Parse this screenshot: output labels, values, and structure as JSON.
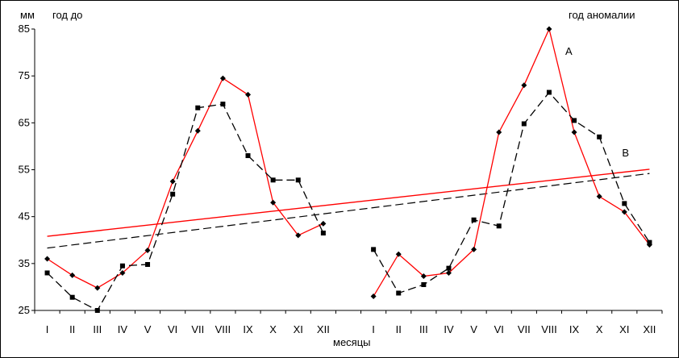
{
  "chart_data": {
    "type": "line",
    "y_unit_label": "мм",
    "left_panel_label": "год до",
    "right_panel_label": "год аномалии",
    "xlabel": "месяцы",
    "ylim": [
      25,
      85
    ],
    "yticks": [
      25,
      35,
      45,
      55,
      65,
      75,
      85
    ],
    "grid": false,
    "categories": [
      "I",
      "II",
      "III",
      "IV",
      "V",
      "VI",
      "VII",
      "VIII",
      "IX",
      "X",
      "XI",
      "XII"
    ],
    "panels": [
      {
        "name": "год до",
        "series": [
          {
            "values": [
              36,
              32.5,
              29.8,
              33,
              37.8,
              52.5,
              63.3,
              74.5,
              71,
              48,
              41,
              43.5
            ],
            "color": "#ff0000",
            "style": "solid",
            "marker": "diamond"
          },
          {
            "values": [
              33,
              27.8,
              25,
              34.5,
              34.8,
              49.8,
              68.2,
              69,
              58,
              52.8,
              52.8,
              41.5
            ],
            "color": "#000000",
            "style": "dashed",
            "marker": "square"
          }
        ],
        "trends": [
          {
            "start": 40.8,
            "end": 55.1,
            "color": "#ff0000",
            "style": "solid"
          },
          {
            "start": 38.3,
            "end": 54.2,
            "color": "#000000",
            "style": "dashed"
          }
        ]
      },
      {
        "name": "год аномалии",
        "series": [
          {
            "name": "A",
            "values": [
              28,
              37,
              32.3,
              33,
              38,
              63,
              73,
              85,
              63,
              49.3,
              46,
              39
            ],
            "color": "#ff0000",
            "style": "solid",
            "marker": "diamond"
          },
          {
            "name": "B",
            "values": [
              38,
              28.7,
              30.5,
              34,
              44.3,
              43,
              64.8,
              71.5,
              65.5,
              62,
              47.8,
              39.5
            ],
            "color": "#000000",
            "style": "dashed",
            "marker": "square"
          }
        ]
      }
    ]
  }
}
